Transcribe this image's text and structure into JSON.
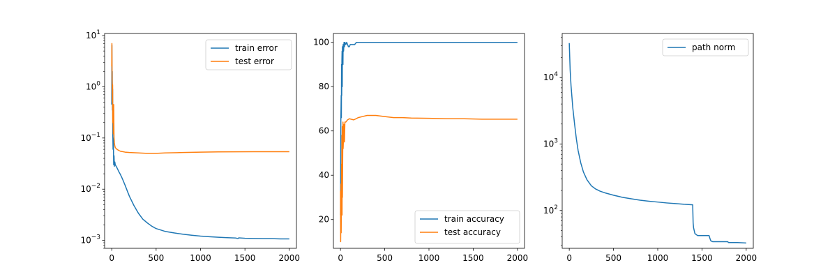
{
  "chart_data": [
    {
      "type": "line",
      "title": "",
      "xlabel": "",
      "ylabel": "",
      "xlim": [
        -80,
        2080
      ],
      "ylim": [
        0.0007,
        11
      ],
      "yscale": "log",
      "grid": false,
      "legend_position": "top-right",
      "xticks": [
        0,
        500,
        1000,
        1500,
        2000
      ],
      "xtick_labels": [
        "0",
        "500",
        "1000",
        "1500",
        "2000"
      ],
      "yticks": [
        0.001,
        0.01,
        0.1,
        1,
        10
      ],
      "ytick_labels": [
        "10^-3",
        "10^-2",
        "10^-1",
        "10^0",
        "10^1"
      ],
      "series": [
        {
          "name": "train error",
          "color": "#1f77b4",
          "x": [
            0,
            2,
            4,
            6,
            8,
            10,
            12,
            15,
            18,
            22,
            26,
            30,
            35,
            40,
            50,
            60,
            80,
            100,
            120,
            150,
            180,
            200,
            250,
            300,
            350,
            400,
            450,
            500,
            600,
            700,
            800,
            900,
            1000,
            1100,
            1200,
            1300,
            1400,
            1420,
            1430,
            1500,
            1600,
            1700,
            1800,
            1900,
            2000
          ],
          "y": [
            0.45,
            6.5,
            0.6,
            2.0,
            0.35,
            0.9,
            0.12,
            0.06,
            0.1,
            0.03,
            0.045,
            0.028,
            0.034,
            0.03,
            0.028,
            0.026,
            0.022,
            0.019,
            0.016,
            0.012,
            0.0088,
            0.0072,
            0.0048,
            0.0034,
            0.0026,
            0.0022,
            0.0019,
            0.0017,
            0.0015,
            0.0014,
            0.00132,
            0.00126,
            0.00121,
            0.00118,
            0.00115,
            0.00113,
            0.00111,
            0.00108,
            0.00112,
            0.0011,
            0.00109,
            0.00108,
            0.00108,
            0.00107,
            0.00107
          ]
        },
        {
          "name": "test error",
          "color": "#ff7f0e",
          "x": [
            0,
            2,
            4,
            6,
            8,
            10,
            12,
            15,
            18,
            22,
            26,
            30,
            35,
            40,
            50,
            60,
            80,
            100,
            150,
            200,
            300,
            400,
            500,
            600,
            800,
            1000,
            1200,
            1400,
            1600,
            1800,
            2000
          ],
          "y": [
            2.5,
            7.0,
            1.5,
            1.0,
            0.5,
            1.1,
            0.2,
            0.25,
            0.12,
            0.45,
            0.1,
            0.08,
            0.07,
            0.065,
            0.062,
            0.06,
            0.057,
            0.055,
            0.053,
            0.052,
            0.051,
            0.05,
            0.05,
            0.051,
            0.052,
            0.053,
            0.0535,
            0.0538,
            0.054,
            0.054,
            0.054
          ]
        }
      ]
    },
    {
      "type": "line",
      "title": "",
      "xlabel": "",
      "ylabel": "",
      "xlim": [
        -80,
        2080
      ],
      "ylim": [
        7,
        104
      ],
      "yscale": "linear",
      "grid": false,
      "legend_position": "bottom-right",
      "xticks": [
        0,
        500,
        1000,
        1500,
        2000
      ],
      "xtick_labels": [
        "0",
        "500",
        "1000",
        "1500",
        "2000"
      ],
      "yticks": [
        20,
        40,
        60,
        80,
        100
      ],
      "ytick_labels": [
        "20",
        "40",
        "60",
        "80",
        "100"
      ],
      "series": [
        {
          "name": "train accuracy",
          "color": "#1f77b4",
          "x": [
            0,
            2,
            4,
            6,
            8,
            10,
            12,
            14,
            16,
            18,
            20,
            22,
            25,
            28,
            30,
            35,
            40,
            45,
            50,
            60,
            70,
            80,
            90,
            100,
            110,
            120,
            140,
            160,
            180,
            200,
            300,
            500,
            1000,
            1500,
            2000
          ],
          "y": [
            22,
            40,
            65,
            70,
            76,
            66,
            90,
            76,
            92,
            96,
            80,
            98,
            97,
            90,
            99,
            96,
            100,
            98,
            100,
            99,
            100,
            99,
            98,
            98,
            99,
            99,
            99,
            99,
            100,
            100,
            100,
            100,
            100,
            100,
            100
          ]
        },
        {
          "name": "test accuracy",
          "color": "#ff7f0e",
          "x": [
            0,
            2,
            4,
            6,
            8,
            10,
            12,
            14,
            16,
            18,
            20,
            22,
            25,
            28,
            30,
            35,
            40,
            45,
            50,
            60,
            80,
            100,
            150,
            200,
            250,
            300,
            350,
            400,
            500,
            600,
            700,
            800,
            1000,
            1200,
            1400,
            1600,
            1800,
            2000
          ],
          "y": [
            33,
            10,
            22,
            36,
            14,
            28,
            45,
            26,
            58,
            22,
            62,
            30,
            48,
            64,
            52,
            58,
            63,
            55,
            64,
            64,
            65,
            65.5,
            65,
            66,
            66.5,
            67,
            67,
            67,
            66.5,
            66,
            66,
            65.8,
            65.7,
            65.5,
            65.5,
            65.3,
            65.3,
            65.3
          ]
        }
      ]
    },
    {
      "type": "line",
      "title": "",
      "xlabel": "",
      "ylabel": "",
      "xlim": [
        -80,
        2080
      ],
      "ylim": [
        27,
        46000
      ],
      "yscale": "log",
      "grid": false,
      "legend_position": "top-right",
      "xticks": [
        0,
        500,
        1000,
        1500,
        2000
      ],
      "xtick_labels": [
        "0",
        "500",
        "1000",
        "1500",
        "2000"
      ],
      "yticks": [
        100,
        1000,
        10000
      ],
      "ytick_labels": [
        "10^2",
        "10^3",
        "10^4"
      ],
      "series": [
        {
          "name": "path norm",
          "color": "#1f77b4",
          "x": [
            0,
            10,
            20,
            40,
            60,
            80,
            100,
            130,
            160,
            200,
            250,
            300,
            350,
            400,
            500,
            600,
            700,
            800,
            900,
            1000,
            1100,
            1200,
            1300,
            1395,
            1400,
            1405,
            1420,
            1450,
            1500,
            1580,
            1590,
            1600,
            1620,
            1700,
            1790,
            1800,
            1900,
            2000
          ],
          "y": [
            33000,
            13000,
            7500,
            3500,
            2000,
            1200,
            800,
            520,
            380,
            290,
            235,
            210,
            195,
            185,
            170,
            158,
            150,
            143,
            138,
            134,
            130,
            127,
            124,
            122,
            65,
            55,
            45,
            42,
            42,
            42,
            38,
            35,
            34,
            34,
            34,
            33,
            33,
            32.5
          ]
        }
      ]
    }
  ]
}
